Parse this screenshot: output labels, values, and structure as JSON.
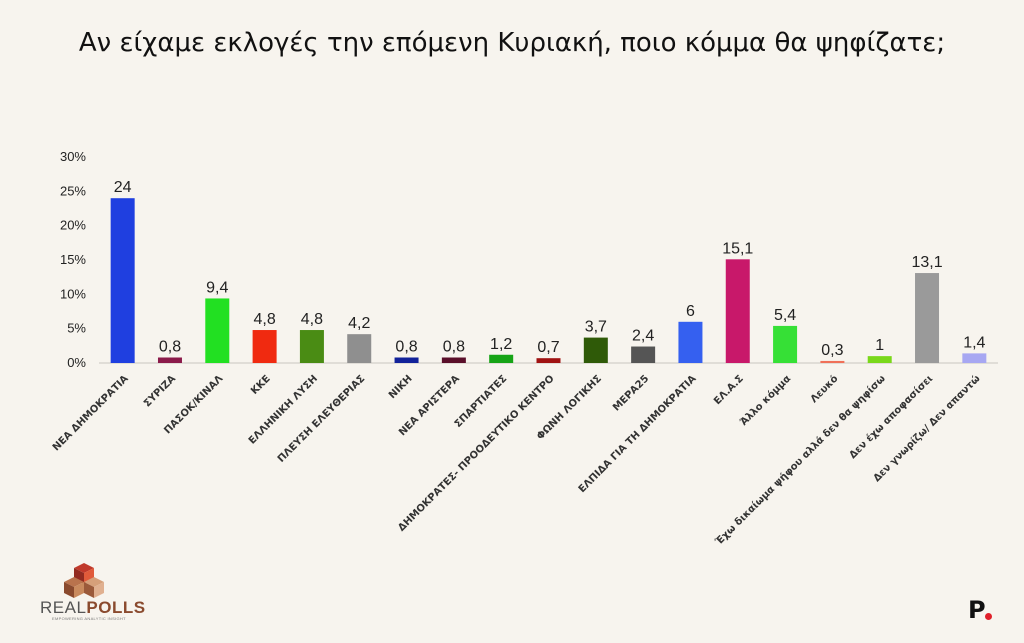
{
  "title": "Αν είχαμε εκλογές την επόμενη Κυριακή, ποιο κόμμα θα ψηφίζατε;",
  "chart_data": {
    "type": "bar",
    "title": "Αν είχαμε εκλογές την επόμενη Κυριακή, ποιο κόμμα θα ψηφίζατε;",
    "ylim": [
      0,
      30
    ],
    "yticks": [
      "0%",
      "5%",
      "10%",
      "15%",
      "20%",
      "25%",
      "30%"
    ],
    "grid": false,
    "categories": [
      "ΝΕΑ ΔΗΜΟΚΡΑΤΙΑ",
      "ΣΥΡΙΖΑ",
      "ΠΑΣΟΚ/ΚΙΝΑΛ",
      "ΚΚΕ",
      "ΕΛΛΗΝΙΚΗ ΛΥΣΗ",
      "ΠΛΕΥΣΗ ΕΛΕΥΘΕΡΙΑΣ",
      "ΝΙΚΗ",
      "ΝΕΑ ΑΡΙΣΤΕΡΑ",
      "ΣΠΑΡΤΙΑΤΕΣ",
      "ΔΗΜΟΚΡΑΤΕΣ- ΠΡΟΟΔΕΥΤΙΚΟ ΚΕΝΤΡΟ",
      "ΦΩΝΗ ΛΟΓΙΚΗΣ",
      "ΜΕΡΑ25",
      "ΕΛΠΙΔΑ ΓΙΑ ΤΗ ΔΗΜΟΚΡΑΤΙΑ",
      "ΕΛ.Α.Σ",
      "Άλλο κόμμα",
      "Λευκό",
      "Έχω δικαίωμα ψήφου αλλά δεν θα ψηφίσω",
      "Δεν έχω αποφασίσει",
      "Δεν γνωρίζω/ Δεν απαντώ"
    ],
    "values": [
      24,
      0.8,
      9.4,
      4.8,
      4.8,
      4.2,
      0.8,
      0.8,
      1.2,
      0.7,
      3.7,
      2.4,
      6,
      15.1,
      5.4,
      0.3,
      1,
      13.1,
      1.4
    ],
    "value_labels": [
      "24",
      "0,8",
      "9,4",
      "4,8",
      "4,8",
      "4,2",
      "0,8",
      "0,8",
      "1,2",
      "0,7",
      "3,7",
      "2,4",
      "6",
      "15,1",
      "5,4",
      "0,3",
      "1",
      "13,1",
      "1,4"
    ],
    "colors": [
      "#1f3fe0",
      "#8b1a4a",
      "#22e022",
      "#f02a10",
      "#4a8c14",
      "#8f8f8f",
      "#12229a",
      "#5a0f2a",
      "#16a416",
      "#a01212",
      "#2f5a08",
      "#555555",
      "#3560f0",
      "#c8186a",
      "#36e036",
      "#f07058",
      "#7ad81a",
      "#9a9a9a",
      "#a7a7f2"
    ]
  },
  "logo": {
    "name_part1": "REAL",
    "name_part2": "POLLS",
    "tagline": "EMPOWERING ANALYTIC INSIGHT"
  },
  "brand": {
    "letter": "P"
  }
}
